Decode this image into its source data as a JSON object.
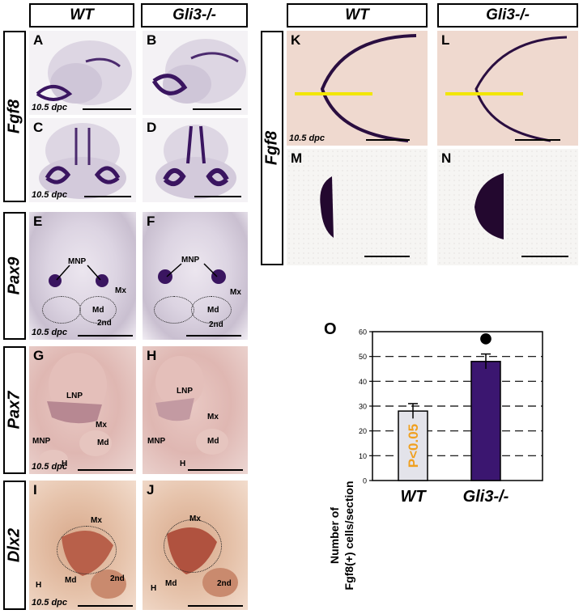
{
  "headers": {
    "wt_left": "WT",
    "gli_left": "Gli3-/-",
    "wt_right": "WT",
    "gli_right": "Gli3-/-"
  },
  "rows": {
    "fgf8": "Fgf8",
    "pax9": "Pax9",
    "pax7": "Pax7",
    "dlx2": "Dlx2",
    "fgf8_right": "Fgf8"
  },
  "stage": "10.5 dpc",
  "panels": {
    "A": "A",
    "B": "B",
    "C": "C",
    "D": "D",
    "E": "E",
    "F": "F",
    "G": "G",
    "H": "H",
    "I": "I",
    "J": "J",
    "K": "K",
    "L": "L",
    "M": "M",
    "N": "N",
    "O": "O"
  },
  "annotations": {
    "mnp": "MNP",
    "mx": "Mx",
    "md": "Md",
    "second": "2nd",
    "lnp": "LNP",
    "h": "H"
  },
  "colors": {
    "stain": "#3a1560",
    "bar_wt": "#e3e3ea",
    "bar_gli": "#3b1670",
    "pvalue": "#f0a020",
    "line": "#f2e600"
  },
  "chart_data": {
    "type": "bar",
    "categories": [
      "WT",
      "Gli3-/-"
    ],
    "values": [
      28,
      48
    ],
    "errors": [
      3,
      3
    ],
    "ylabel_line1": "Number of",
    "ylabel_line2": "Fgf8(+) cells/section",
    "ylim": [
      0,
      60
    ],
    "yticks": [
      "0",
      "10",
      "20",
      "30",
      "40",
      "50",
      "60"
    ],
    "annotation": "P<0.05",
    "significance_marker": "●",
    "grid": "dashed horizontal"
  }
}
